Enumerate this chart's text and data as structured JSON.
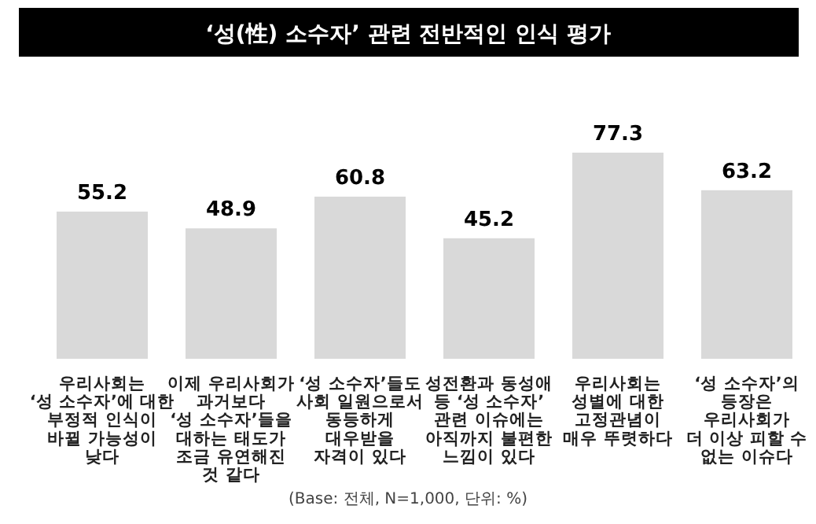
{
  "chart_data": {
    "type": "bar",
    "title": "‘성(性) 소수자’ 관련 전반적인 인식 평가",
    "categories": [
      "우리사회는\n‘성 소수자’에 대한\n부정적 인식이\n바뀔 가능성이\n낮다",
      "이제 우리사회가\n과거보다\n‘성 소수자’들을\n대하는 태도가\n조금 유연해진\n것 같다",
      "‘성 소수자’들도\n사회 일원으로서\n동등하게\n대우받을\n자격이 있다",
      "성전환과 동성애\n등 ‘성 소수자’\n관련 이슈에는\n아직까지 불편한\n느낌이 있다",
      "우리사회는\n성별에 대한\n고정관념이\n매우 뚜렷하다",
      "‘성 소수자’의\n등장은\n우리사회가\n더 이상 피할 수\n없는 이슈다"
    ],
    "values": [
      55.2,
      48.9,
      60.8,
      45.2,
      77.3,
      63.2
    ],
    "color": "#d9d9d9",
    "data_labels": true,
    "annotations": [
      "(Base: 전체, N=1,000, 단위: %)"
    ]
  }
}
